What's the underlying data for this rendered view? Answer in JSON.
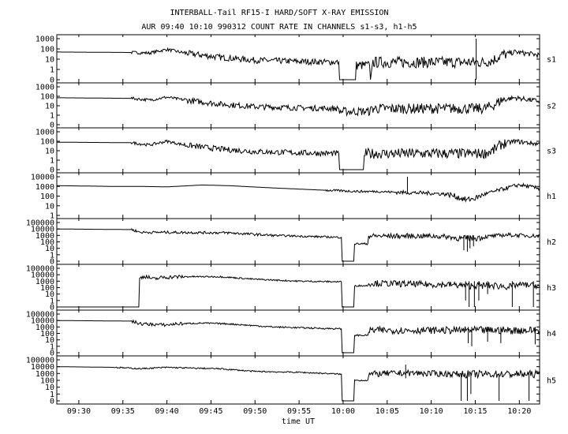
{
  "chart_data": {
    "type": "line",
    "title": "INTERBALL-Tail RF15-I HARD/SOFT X-RAY EMISSION",
    "subtitle": "AUR 09:40 10:10 990312  COUNT RATE IN CHANNELS s1-s3, h1-h5",
    "xlabel": "time UT",
    "x_ticks": [
      "09:30",
      "09:35",
      "09:40",
      "09:45",
      "09:50",
      "09:55",
      "10:00",
      "10:05",
      "10:10",
      "10:15",
      "10:20"
    ],
    "x_tick_minutes": [
      30,
      35,
      40,
      45,
      50,
      55,
      60,
      65,
      70,
      75,
      80
    ],
    "xlim_minutes_after_0900": [
      27.5,
      82.3
    ],
    "y_scale": "log",
    "grid": false,
    "panels": [
      {
        "name": "s1",
        "yticks": [
          "1000",
          "100",
          "10",
          "1",
          "0"
        ],
        "yvals": [
          1000,
          100,
          10,
          1,
          0
        ],
        "points": [
          [
            27.5,
            50
          ],
          [
            36,
            45
          ],
          [
            38,
            40
          ],
          [
            40,
            90
          ],
          [
            42,
            40
          ],
          [
            46,
            15
          ],
          [
            50,
            8
          ],
          [
            55,
            6
          ],
          [
            59.5,
            5
          ],
          [
            59.6,
            0
          ],
          [
            61.4,
            0
          ],
          [
            61.5,
            2.5
          ],
          [
            63,
            2.5
          ],
          [
            63.1,
            0
          ],
          [
            63.3,
            5
          ],
          [
            70,
            5
          ],
          [
            76,
            5
          ],
          [
            77,
            8
          ],
          [
            78,
            25
          ],
          [
            79.5,
            50
          ],
          [
            82.3,
            25
          ]
        ],
        "noise": [
          [
            36,
            0.15
          ],
          [
            42,
            0.3
          ],
          [
            59.5,
            0.45
          ],
          [
            63.3,
            0.55
          ],
          [
            77,
            0.55
          ],
          [
            78.5,
            0.25
          ]
        ],
        "drops": [
          [
            75.1,
            0
          ]
        ]
      },
      {
        "name": "s2",
        "yticks": [
          "1000",
          "100",
          "10",
          "1",
          "0"
        ],
        "yvals": [
          1000,
          100,
          10,
          1,
          0
        ],
        "points": [
          [
            27.5,
            70
          ],
          [
            36,
            60
          ],
          [
            38,
            40
          ],
          [
            40,
            80
          ],
          [
            42,
            40
          ],
          [
            46,
            15
          ],
          [
            50,
            8
          ],
          [
            55,
            6
          ],
          [
            59.5,
            5
          ],
          [
            59.6,
            2.5
          ],
          [
            63,
            2.5
          ],
          [
            63.3,
            5
          ],
          [
            70,
            5
          ],
          [
            76,
            5
          ],
          [
            77,
            10
          ],
          [
            78,
            40
          ],
          [
            79.5,
            70
          ],
          [
            82.3,
            30
          ]
        ],
        "noise": [
          [
            36,
            0.15
          ],
          [
            42,
            0.3
          ],
          [
            59.5,
            0.45
          ],
          [
            63.3,
            0.55
          ],
          [
            77,
            0.55
          ],
          [
            78.5,
            0.25
          ]
        ],
        "drops": []
      },
      {
        "name": "s3",
        "yticks": [
          "1000",
          "100",
          "10",
          "1",
          "0"
        ],
        "yvals": [
          1000,
          100,
          10,
          1,
          0
        ],
        "points": [
          [
            27.5,
            80
          ],
          [
            36,
            70
          ],
          [
            38,
            40
          ],
          [
            40,
            100
          ],
          [
            42,
            40
          ],
          [
            46,
            15
          ],
          [
            50,
            8
          ],
          [
            55,
            6
          ],
          [
            59.5,
            5
          ],
          [
            59.6,
            0
          ],
          [
            62.3,
            0
          ],
          [
            62.4,
            5
          ],
          [
            70,
            5
          ],
          [
            76,
            5
          ],
          [
            77,
            10
          ],
          [
            78,
            50
          ],
          [
            79.5,
            100
          ],
          [
            82.3,
            50
          ]
        ],
        "noise": [
          [
            36,
            0.15
          ],
          [
            42,
            0.3
          ],
          [
            59.5,
            0.45
          ],
          [
            62.4,
            0.55
          ],
          [
            77,
            0.55
          ],
          [
            78.5,
            0.25
          ]
        ],
        "drops": []
      },
      {
        "name": "h1",
        "yticks": [
          "10000",
          "1000",
          "100",
          "10",
          "1"
        ],
        "yvals": [
          10000,
          1000,
          100,
          10,
          1
        ],
        "points": [
          [
            27.5,
            1200
          ],
          [
            34,
            1000
          ],
          [
            37,
            1000
          ],
          [
            40,
            900
          ],
          [
            44,
            1400
          ],
          [
            47,
            1200
          ],
          [
            52,
            700
          ],
          [
            58,
            400
          ],
          [
            62,
            300
          ],
          [
            64,
            300
          ],
          [
            66,
            250
          ],
          [
            70,
            200
          ],
          [
            72,
            150
          ],
          [
            74,
            40
          ],
          [
            75,
            60
          ],
          [
            76,
            150
          ],
          [
            78,
            500
          ],
          [
            80,
            1500
          ],
          [
            81,
            1000
          ],
          [
            82.3,
            600
          ]
        ],
        "noise": [
          [
            58,
            0.12
          ],
          [
            66,
            0.2
          ],
          [
            72,
            0.3
          ],
          [
            76,
            0.2
          ]
        ],
        "drops": [],
        "spikes": [
          [
            67.3,
            10000
          ]
        ]
      },
      {
        "name": "h2",
        "yticks": [
          "100000",
          "10000",
          "1000",
          "100",
          "10",
          "1",
          "0"
        ],
        "yvals": [
          100000,
          10000,
          1000,
          100,
          10,
          1,
          0
        ],
        "points": [
          [
            27.5,
            10000
          ],
          [
            36,
            8000
          ],
          [
            37,
            3000
          ],
          [
            40,
            3000
          ],
          [
            47,
            2500
          ],
          [
            52,
            1000
          ],
          [
            59.8,
            500
          ],
          [
            59.9,
            0
          ],
          [
            61.2,
            0
          ],
          [
            61.3,
            50
          ],
          [
            62.8,
            50
          ],
          [
            62.9,
            800
          ],
          [
            70,
            800
          ],
          [
            72,
            600
          ],
          [
            73.5,
            300
          ],
          [
            75,
            400
          ],
          [
            77,
            800
          ],
          [
            78.5,
            1200
          ],
          [
            82.3,
            800
          ]
        ],
        "noise": [
          [
            36,
            0.2
          ],
          [
            52,
            0.15
          ],
          [
            62.9,
            0.4
          ],
          [
            73,
            0.5
          ],
          [
            76,
            0.3
          ]
        ],
        "drops": [
          [
            73.7,
            5
          ],
          [
            74.1,
            3
          ],
          [
            74.4,
            10
          ],
          [
            74.8,
            20
          ]
        ]
      },
      {
        "name": "h3",
        "yticks": [
          "100000",
          "10000",
          "1000",
          "100",
          "10",
          "1",
          "0"
        ],
        "yvals": [
          100000,
          10000,
          1000,
          100,
          10,
          1,
          0
        ],
        "points": [
          [
            27.5,
            0
          ],
          [
            36.8,
            0
          ],
          [
            36.9,
            3000
          ],
          [
            37.5,
            6000
          ],
          [
            38.5,
            2000
          ],
          [
            39.5,
            4000
          ],
          [
            42,
            5000
          ],
          [
            46,
            5000
          ],
          [
            50,
            2000
          ],
          [
            55,
            1000
          ],
          [
            59.8,
            800
          ],
          [
            59.9,
            0
          ],
          [
            61.2,
            0
          ],
          [
            61.3,
            200
          ],
          [
            62.8,
            200
          ],
          [
            62.9,
            500
          ],
          [
            70,
            300
          ],
          [
            72,
            300
          ],
          [
            74,
            200
          ],
          [
            77,
            200
          ],
          [
            79,
            150
          ],
          [
            80,
            300
          ],
          [
            82.3,
            200
          ]
        ],
        "noise": [
          [
            37,
            0.3
          ],
          [
            42,
            0.12
          ],
          [
            62.9,
            0.5
          ],
          [
            74,
            0.55
          ],
          [
            79,
            0.45
          ]
        ],
        "drops": [
          [
            73.9,
            1
          ],
          [
            74.3,
            0
          ],
          [
            74.9,
            0
          ],
          [
            75.4,
            1
          ],
          [
            76.4,
            10
          ],
          [
            79.2,
            0
          ],
          [
            81.6,
            0
          ]
        ]
      },
      {
        "name": "h4",
        "yticks": [
          "100000",
          "10000",
          "1000",
          "100",
          "10",
          "1",
          "0"
        ],
        "yvals": [
          100000,
          10000,
          1000,
          100,
          10,
          1,
          0
        ],
        "points": [
          [
            27.5,
            10000
          ],
          [
            36,
            8000
          ],
          [
            37,
            3000
          ],
          [
            40,
            2000
          ],
          [
            41,
            3000
          ],
          [
            44,
            4000
          ],
          [
            47,
            3000
          ],
          [
            52,
            1000
          ],
          [
            59.8,
            500
          ],
          [
            59.9,
            0
          ],
          [
            61.2,
            0
          ],
          [
            61.3,
            50
          ],
          [
            62.8,
            50
          ],
          [
            62.9,
            300
          ],
          [
            70,
            300
          ],
          [
            76,
            300
          ],
          [
            82.3,
            300
          ]
        ],
        "noise": [
          [
            36,
            0.25
          ],
          [
            42,
            0.12
          ],
          [
            62.9,
            0.55
          ],
          [
            73,
            0.6
          ]
        ],
        "drops": [
          [
            74.2,
            3
          ],
          [
            74.6,
            1
          ],
          [
            76.4,
            5
          ],
          [
            77.9,
            3
          ],
          [
            81.8,
            2
          ]
        ]
      },
      {
        "name": "h5",
        "yticks": [
          "100000",
          "10000",
          "1000",
          "100",
          "10",
          "1",
          "0"
        ],
        "yvals": [
          100000,
          10000,
          1000,
          100,
          10,
          1,
          0
        ],
        "points": [
          [
            27.5,
            10000
          ],
          [
            34,
            8000
          ],
          [
            37,
            5000
          ],
          [
            40,
            8000
          ],
          [
            43,
            6000
          ],
          [
            46,
            5000
          ],
          [
            50,
            2000
          ],
          [
            55,
            1500
          ],
          [
            59.8,
            800
          ],
          [
            59.9,
            0
          ],
          [
            61.2,
            0
          ],
          [
            61.3,
            100
          ],
          [
            62.8,
            100
          ],
          [
            62.9,
            800
          ],
          [
            67,
            1200
          ],
          [
            70,
            1000
          ],
          [
            74,
            800
          ],
          [
            76,
            800
          ],
          [
            82.3,
            800
          ]
        ],
        "noise": [
          [
            34,
            0.1
          ],
          [
            46,
            0.1
          ],
          [
            62.9,
            0.45
          ],
          [
            73,
            0.55
          ]
        ],
        "drops": [
          [
            73.4,
            0
          ],
          [
            74.1,
            0
          ],
          [
            74.5,
            1
          ],
          [
            77.7,
            0
          ],
          [
            81.1,
            0
          ]
        ],
        "spikes": [
          [
            67.1,
            20000
          ]
        ]
      }
    ]
  }
}
